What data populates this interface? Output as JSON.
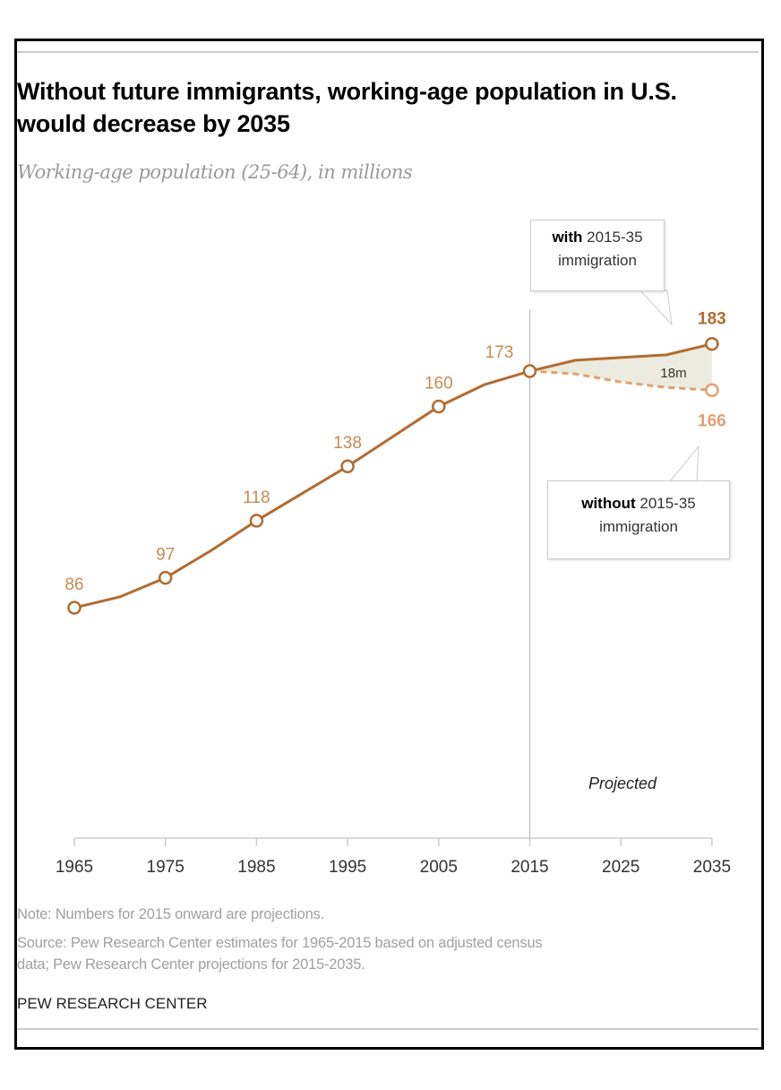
{
  "title": "Without future immigrants, working-age population in U.S. would decrease by 2035",
  "subtitle": "Working-age population (25-64), in millions",
  "notes": {
    "note": "Note: Numbers for 2015 onward are projections.",
    "source_line1": "Source: Pew Research Center estimates for 1965-2015 based on adjusted census",
    "source_line2": "data; Pew Research Center projections for 2015-2035.",
    "brand": "PEW RESEARCH CENTER"
  },
  "callouts": {
    "with_bold": "with",
    "with_rest": " 2015-35",
    "with_line2": "immigration",
    "without_bold": "without",
    "without_rest": " 2015-35",
    "without_line2": "immigration"
  },
  "chart_data": {
    "type": "line",
    "title": "Without future immigrants, working-age population in U.S. would decrease by 2035",
    "subtitle": "Working-age population (25-64), in millions",
    "x_ticks": [
      "1965",
      "1975",
      "1985",
      "1995",
      "2005",
      "2015",
      "2025",
      "2035"
    ],
    "xlim": [
      1965,
      2035
    ],
    "grid": false,
    "projection_start": 2015,
    "projection_label": "Projected",
    "gap_label": "18m",
    "colors": {
      "with": "#b36b30",
      "without": "#e0a070",
      "gap_fill": "#ebebe0",
      "divider": "#bbbbbb"
    },
    "series": [
      {
        "name": "with 2015-35 immigration",
        "x": [
          1965,
          1970,
          1975,
          1980,
          1985,
          1990,
          1995,
          2000,
          2005,
          2010,
          2015,
          2020,
          2025,
          2030,
          2035
        ],
        "y": [
          86,
          90,
          97,
          107,
          118,
          128,
          138,
          149,
          160,
          168,
          173,
          177,
          178,
          179,
          183
        ]
      },
      {
        "name": "without 2015-35 immigration",
        "x": [
          2015,
          2020,
          2025,
          2030,
          2035
        ],
        "y": [
          173,
          172,
          169,
          167,
          166
        ]
      }
    ],
    "labeled_points": [
      {
        "x": 1965,
        "y": 86,
        "label": "86"
      },
      {
        "x": 1975,
        "y": 97,
        "label": "97"
      },
      {
        "x": 1985,
        "y": 118,
        "label": "118"
      },
      {
        "x": 1995,
        "y": 138,
        "label": "138"
      },
      {
        "x": 2005,
        "y": 160,
        "label": "160"
      },
      {
        "x": 2015,
        "y": 173,
        "label": "173"
      },
      {
        "x": 2035,
        "y": 183,
        "label": "183"
      },
      {
        "x": 2035,
        "y": 166,
        "label": "166"
      }
    ]
  }
}
